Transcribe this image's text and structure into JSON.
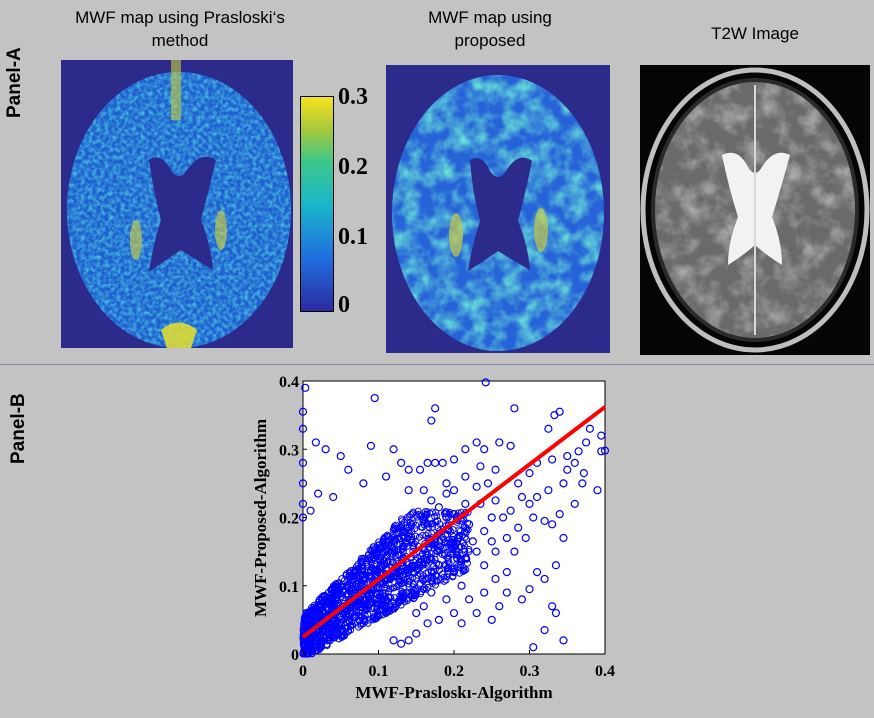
{
  "panel_a": {
    "label": "Panel-A",
    "maps": [
      {
        "title_line1": "MWF map using Prasloski‘s",
        "title_line2": "method"
      },
      {
        "title_line1": "MWF map using",
        "title_line2": "proposed"
      },
      {
        "title_line1": "T2W Image",
        "title_line2": ""
      }
    ],
    "colorbar": {
      "ticks": [
        "0.3",
        "0.2",
        "0.1",
        "0"
      ],
      "values": [
        0.3,
        0.2,
        0.1,
        0
      ],
      "colors": [
        "#2c2ba0",
        "#1f6fe0",
        "#19b7c8",
        "#3ec78a",
        "#a8c93a",
        "#f7e21e"
      ]
    }
  },
  "panel_b": {
    "label": "Panel-B"
  },
  "chart_data": {
    "type": "scatter",
    "xlabel": "MWF-Prasloskı-Algorithm",
    "ylabel": "MWF-Proposed-Algorithm",
    "xlim": [
      0,
      0.4
    ],
    "ylim": [
      0,
      0.4
    ],
    "xticks": [
      "0",
      "0.1",
      "0.2",
      "0.3",
      "0.4"
    ],
    "yticks": [
      "0",
      "0.1",
      "0.2",
      "0.3",
      "0.4"
    ],
    "marker_color": "#0000ff",
    "fit_line_color": "#ff0000",
    "fit_line": {
      "x": [
        0,
        0.4
      ],
      "y": [
        0.025,
        0.362
      ]
    },
    "outliers": [
      [
        0.003,
        0.39
      ],
      [
        0.0,
        0.355
      ],
      [
        0.0,
        0.33
      ],
      [
        0.017,
        0.31
      ],
      [
        0.0,
        0.28
      ],
      [
        0.0,
        0.25
      ],
      [
        0.0,
        0.22
      ],
      [
        0.0,
        0.2
      ],
      [
        0.095,
        0.375
      ],
      [
        0.175,
        0.36
      ],
      [
        0.17,
        0.342
      ],
      [
        0.242,
        0.398
      ],
      [
        0.28,
        0.36
      ],
      [
        0.325,
        0.33
      ],
      [
        0.333,
        0.35
      ],
      [
        0.34,
        0.355
      ],
      [
        0.38,
        0.33
      ],
      [
        0.395,
        0.32
      ],
      [
        0.4,
        0.298
      ],
      [
        0.395,
        0.297
      ],
      [
        0.365,
        0.297
      ],
      [
        0.36,
        0.28
      ],
      [
        0.35,
        0.27
      ],
      [
        0.37,
        0.25
      ],
      [
        0.39,
        0.24
      ],
      [
        0.24,
        0.3
      ],
      [
        0.23,
        0.31
      ],
      [
        0.215,
        0.3
      ],
      [
        0.2,
        0.285
      ],
      [
        0.185,
        0.28
      ],
      [
        0.175,
        0.28
      ],
      [
        0.165,
        0.28
      ],
      [
        0.155,
        0.27
      ],
      [
        0.14,
        0.27
      ],
      [
        0.13,
        0.28
      ],
      [
        0.12,
        0.3
      ],
      [
        0.05,
        0.29
      ],
      [
        0.09,
        0.305
      ],
      [
        0.03,
        0.3
      ],
      [
        0.325,
        0.24
      ],
      [
        0.305,
        0.2
      ],
      [
        0.3,
        0.22
      ],
      [
        0.29,
        0.23
      ],
      [
        0.275,
        0.21
      ],
      [
        0.265,
        0.2
      ],
      [
        0.25,
        0.2
      ],
      [
        0.32,
        0.195
      ],
      [
        0.33,
        0.19
      ],
      [
        0.345,
        0.17
      ],
      [
        0.335,
        0.13
      ],
      [
        0.32,
        0.11
      ],
      [
        0.31,
        0.12
      ],
      [
        0.3,
        0.095
      ],
      [
        0.29,
        0.08
      ],
      [
        0.27,
        0.09
      ],
      [
        0.33,
        0.07
      ],
      [
        0.335,
        0.06
      ],
      [
        0.26,
        0.07
      ],
      [
        0.32,
        0.035
      ],
      [
        0.305,
        0.01
      ],
      [
        0.345,
        0.02
      ],
      [
        0.25,
        0.05
      ],
      [
        0.23,
        0.06
      ],
      [
        0.21,
        0.1
      ],
      [
        0.24,
        0.13
      ],
      [
        0.255,
        0.15
      ],
      [
        0.28,
        0.15
      ],
      [
        0.27,
        0.17
      ],
      [
        0.245,
        0.25
      ],
      [
        0.235,
        0.22
      ],
      [
        0.23,
        0.245
      ],
      [
        0.2,
        0.24
      ],
      [
        0.19,
        0.25
      ],
      [
        0.16,
        0.24
      ],
      [
        0.06,
        0.27
      ],
      [
        0.08,
        0.25
      ],
      [
        0.11,
        0.26
      ],
      [
        0.375,
        0.31
      ],
      [
        0.372,
        0.265
      ],
      [
        0.2,
        0.06
      ],
      [
        0.18,
        0.05
      ],
      [
        0.19,
        0.08
      ],
      [
        0.22,
        0.08
      ],
      [
        0.21,
        0.045
      ],
      [
        0.35,
        0.29
      ],
      [
        0.275,
        0.305
      ],
      [
        0.26,
        0.31
      ],
      [
        0.255,
        0.27
      ],
      [
        0.235,
        0.275
      ],
      [
        0.215,
        0.22
      ],
      [
        0.2,
        0.205
      ],
      [
        0.19,
        0.2
      ],
      [
        0.18,
        0.215
      ],
      [
        0.17,
        0.225
      ],
      [
        0.14,
        0.24
      ],
      [
        0.02,
        0.235
      ],
      [
        0.01,
        0.21
      ],
      [
        0.04,
        0.23
      ],
      [
        0.255,
        0.225
      ],
      [
        0.3,
        0.265
      ],
      [
        0.31,
        0.28
      ],
      [
        0.33,
        0.285
      ],
      [
        0.345,
        0.25
      ],
      [
        0.36,
        0.22
      ],
      [
        0.34,
        0.205
      ],
      [
        0.31,
        0.23
      ],
      [
        0.285,
        0.25
      ],
      [
        0.23,
        0.15
      ],
      [
        0.215,
        0.14
      ],
      [
        0.2,
        0.12
      ],
      [
        0.18,
        0.13
      ],
      [
        0.24,
        0.09
      ],
      [
        0.255,
        0.11
      ],
      [
        0.27,
        0.12
      ],
      [
        0.17,
        0.09
      ],
      [
        0.16,
        0.07
      ],
      [
        0.15,
        0.06
      ],
      [
        0.165,
        0.045
      ],
      [
        0.15,
        0.03
      ],
      [
        0.14,
        0.02
      ],
      [
        0.13,
        0.015
      ],
      [
        0.12,
        0.02
      ],
      [
        0.205,
        0.17
      ],
      [
        0.22,
        0.19
      ],
      [
        0.24,
        0.18
      ],
      [
        0.25,
        0.165
      ],
      [
        0.225,
        0.165
      ],
      [
        0.285,
        0.185
      ],
      [
        0.295,
        0.17
      ],
      [
        0.215,
        0.26
      ],
      [
        0.19,
        0.235
      ]
    ]
  }
}
